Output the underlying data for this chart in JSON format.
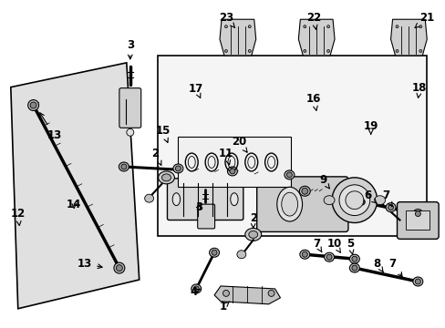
{
  "bg_color": "#ffffff",
  "lc": "#000000",
  "gray_fill": "#e8e8e8",
  "dark_gray": "#888888",
  "med_gray": "#aaaaaa",
  "light_part": "#d0d0d0",
  "box_bg": "#eeeeee"
}
